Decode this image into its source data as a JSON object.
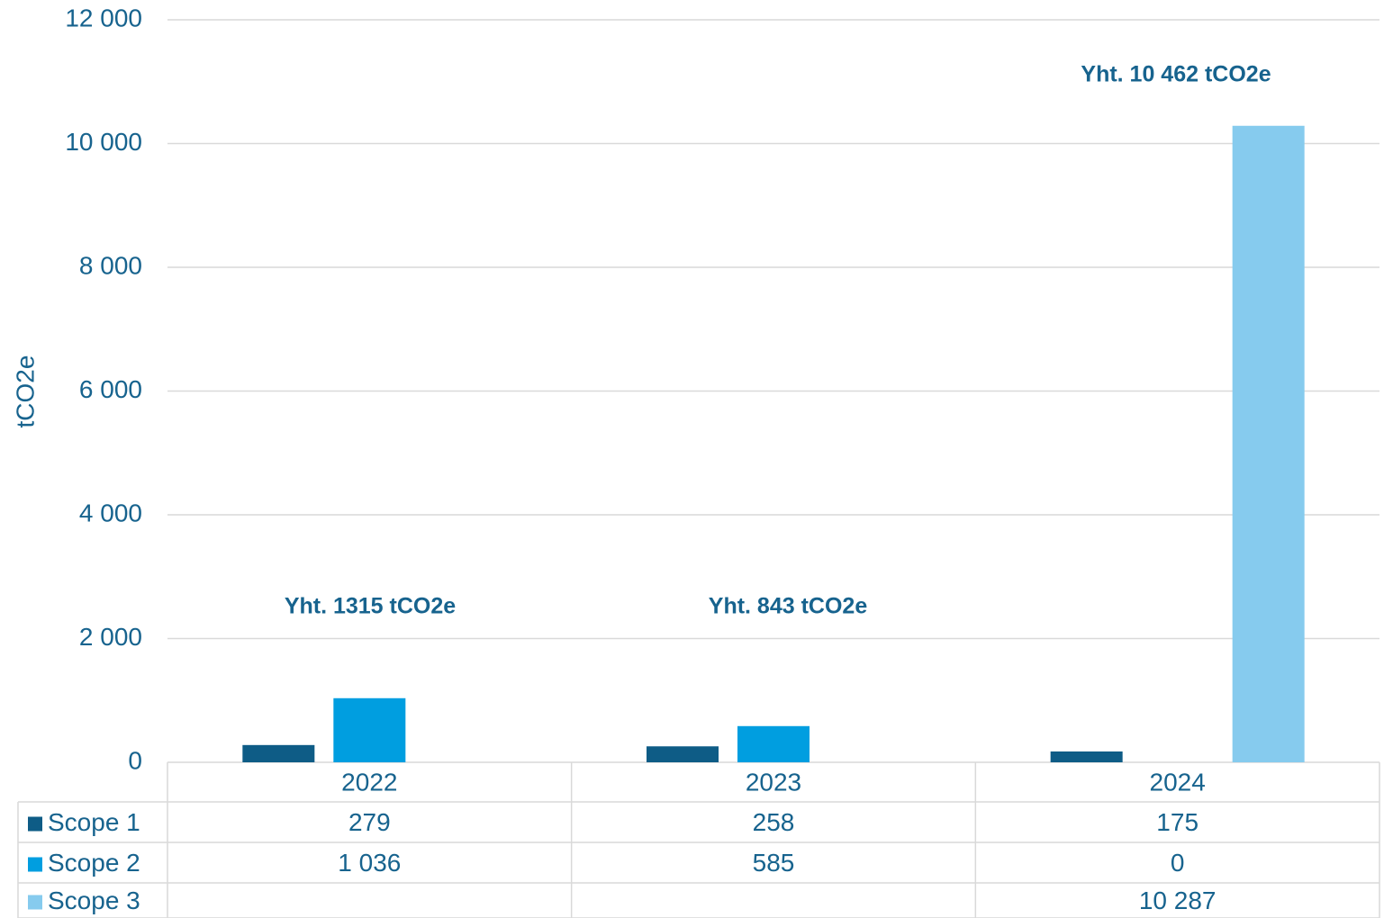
{
  "chart_data": {
    "type": "bar",
    "y_label": "tCO2e",
    "categories": [
      "2022",
      "2023",
      "2024"
    ],
    "series": [
      {
        "name": "Scope 1",
        "color": "#0e5c86",
        "values": [
          279,
          258,
          175
        ],
        "value_labels": [
          "279",
          "258",
          "175"
        ]
      },
      {
        "name": "Scope 2",
        "color": "#009ee0",
        "values": [
          1036,
          585,
          0
        ],
        "value_labels": [
          "1 036",
          "585",
          "0"
        ]
      },
      {
        "name": "Scope 3",
        "color": "#86cbee",
        "values": [
          null,
          null,
          10287
        ],
        "value_labels": [
          null,
          null,
          "10 287"
        ]
      }
    ],
    "ylim": [
      0,
      12000
    ],
    "yticks": [
      0,
      {
        "value": 2000,
        "label": "2 000"
      },
      {
        "value": 4000,
        "label": "4 000"
      },
      {
        "value": 6000,
        "label": "6 000"
      },
      {
        "value": 8000,
        "label": "8 000"
      },
      {
        "value": 10000,
        "label": "10 000"
      },
      {
        "value": 12000,
        "label": "12 000"
      }
    ],
    "grid": true,
    "annotations": [
      "Yht. 1315 tCO2e",
      "Yht. 843 tCO2e",
      "Yht. 10 462 tCO2e"
    ]
  }
}
